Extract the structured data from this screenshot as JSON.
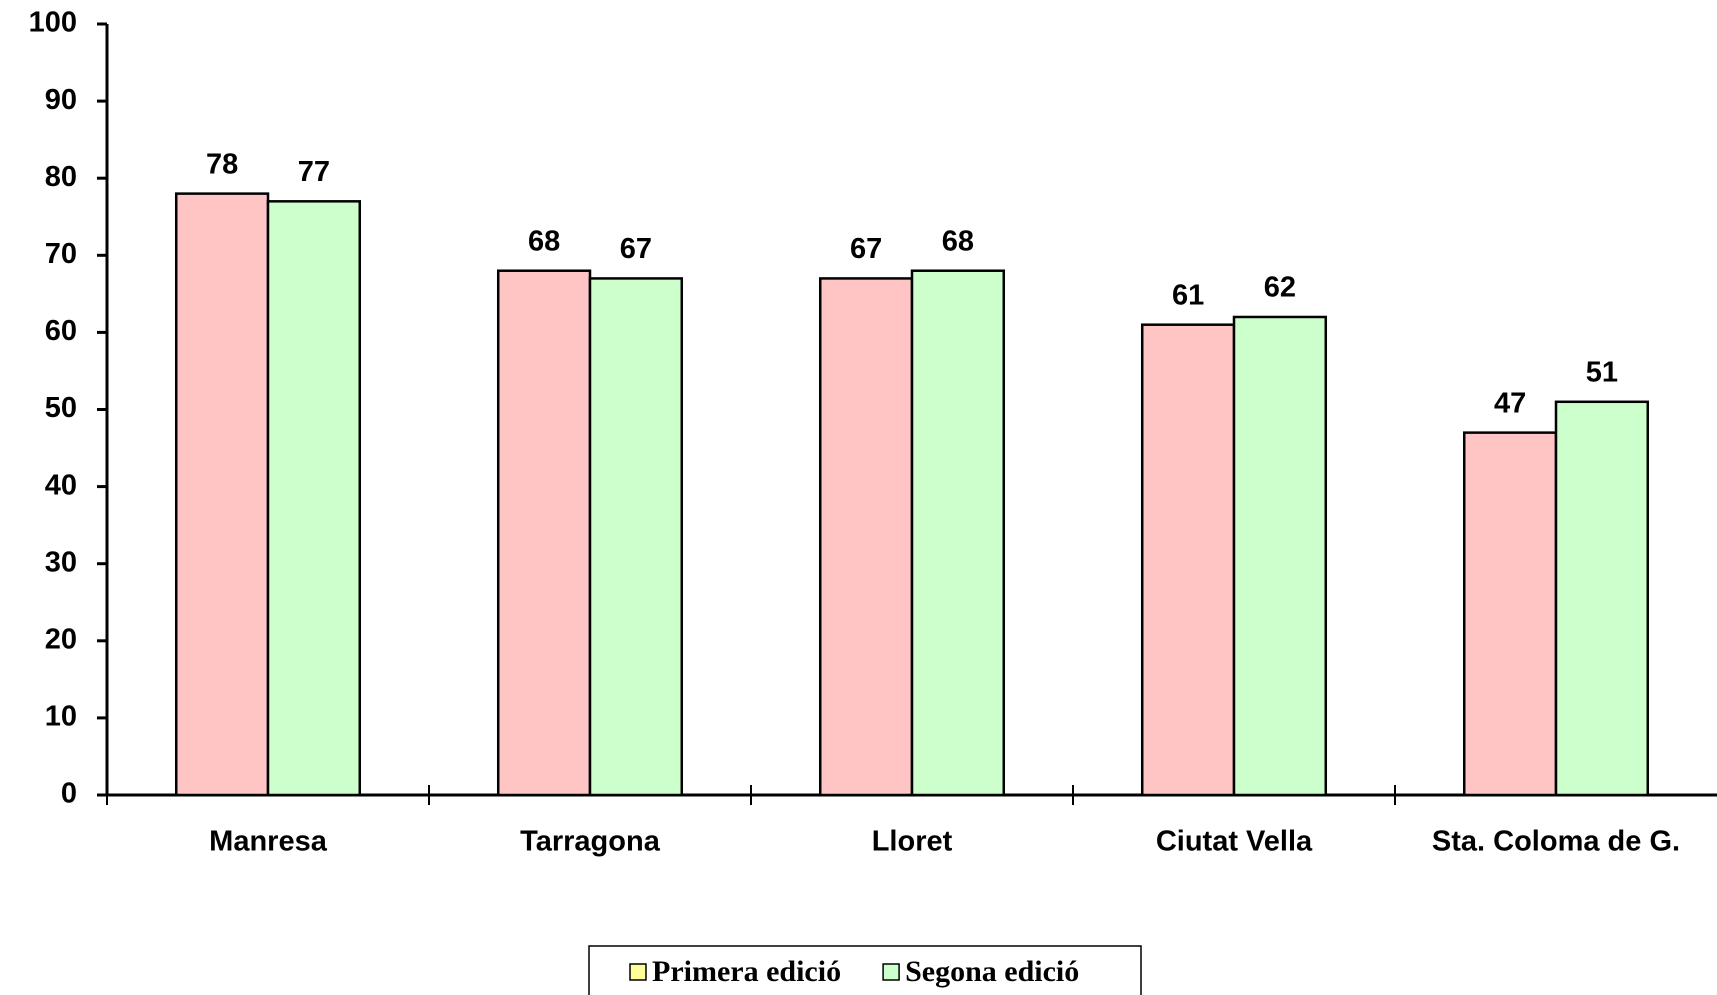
{
  "chart_data": {
    "type": "bar",
    "categories": [
      "Manresa",
      "Tarragona",
      "Lloret",
      "Ciutat Vella",
      "Sta. Coloma de G."
    ],
    "series": [
      {
        "name": "Primera edició",
        "color": "#ffc5c5",
        "legend_color": "#ffff99",
        "values": [
          78,
          68,
          67,
          61,
          47
        ]
      },
      {
        "name": "Segona edició",
        "color": "#ccffcc",
        "legend_color": "#ccffcc",
        "values": [
          77,
          67,
          68,
          62,
          51
        ]
      }
    ],
    "ylim": [
      0,
      100
    ],
    "yticks": [
      0,
      10,
      20,
      30,
      40,
      50,
      60,
      70,
      80,
      90,
      100
    ],
    "legend": "bottom"
  }
}
